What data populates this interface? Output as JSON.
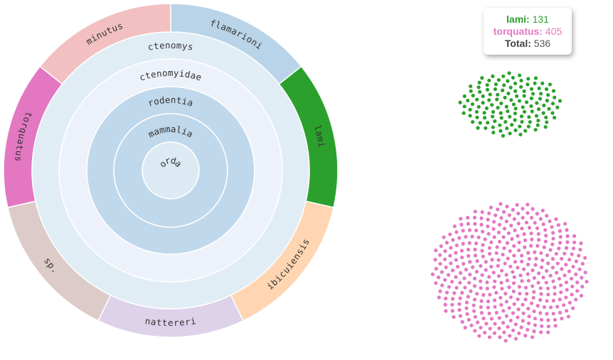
{
  "chart_data": {
    "type": "sunburst",
    "hierarchy": [
      "chordata",
      "mammalia",
      "rodentia",
      "ctenomyidae",
      "ctenomys"
    ],
    "leaves": [
      {
        "name": "flamarioni",
        "color": "#b9d4e9"
      },
      {
        "name": "lami",
        "color": "#2ca02c"
      },
      {
        "name": "ibicuiensis",
        "color": "#ffd5b2"
      },
      {
        "name": "nattereri",
        "color": "#ded1ea"
      },
      {
        "name": "sp.",
        "color": "#dccbc8"
      },
      {
        "name": "torquatus",
        "color": "#e377c2"
      },
      {
        "name": "minutus",
        "color": "#f2c0c1"
      }
    ],
    "ring_colors": [
      "#dcebf3",
      "#c0d8eb",
      "#c0d8eb",
      "#edf2fa",
      "#e0edf5"
    ],
    "selected_counts": [
      {
        "name": "lami",
        "value": 131,
        "color": "#2ca02c"
      },
      {
        "name": "torquatus",
        "value": 405,
        "color": "#e377c2"
      }
    ],
    "total": 536
  },
  "tooltip": {
    "lami_label": "lami:",
    "lami_value": "131",
    "torquatus_label": "torquatus:",
    "torquatus_value": "405",
    "total_label": "Total:",
    "total_value": "536"
  }
}
